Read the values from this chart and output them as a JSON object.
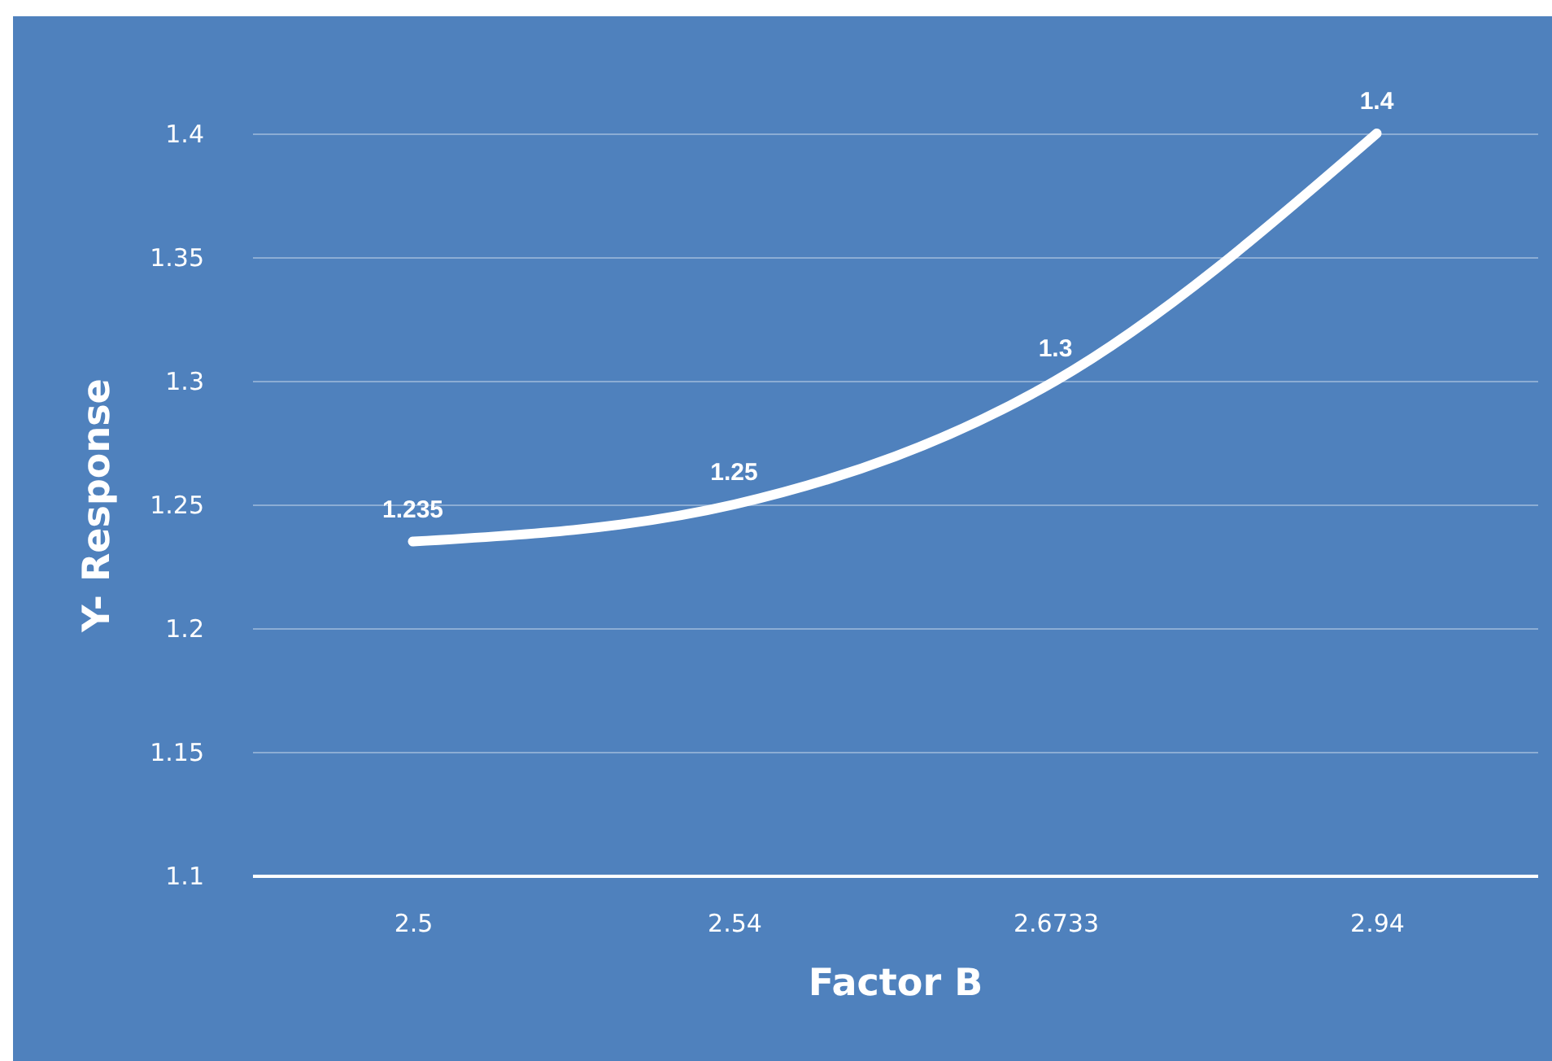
{
  "chart_data": {
    "type": "line",
    "xlabel": "Factor B",
    "ylabel": "Y- Response",
    "categories": [
      "2.5",
      "2.54",
      "2.6733",
      "2.94"
    ],
    "series": [
      {
        "color": "#ffffff",
        "values": [
          1.235,
          1.25,
          1.3,
          1.4
        ]
      }
    ],
    "ylim": [
      1.1,
      1.4
    ],
    "yticks": [
      1.1,
      1.15,
      1.2,
      1.25,
      1.3,
      1.35,
      1.4
    ],
    "grid": "y",
    "data_labels": true,
    "legend": false,
    "marker": "none",
    "line_style": "solid"
  }
}
